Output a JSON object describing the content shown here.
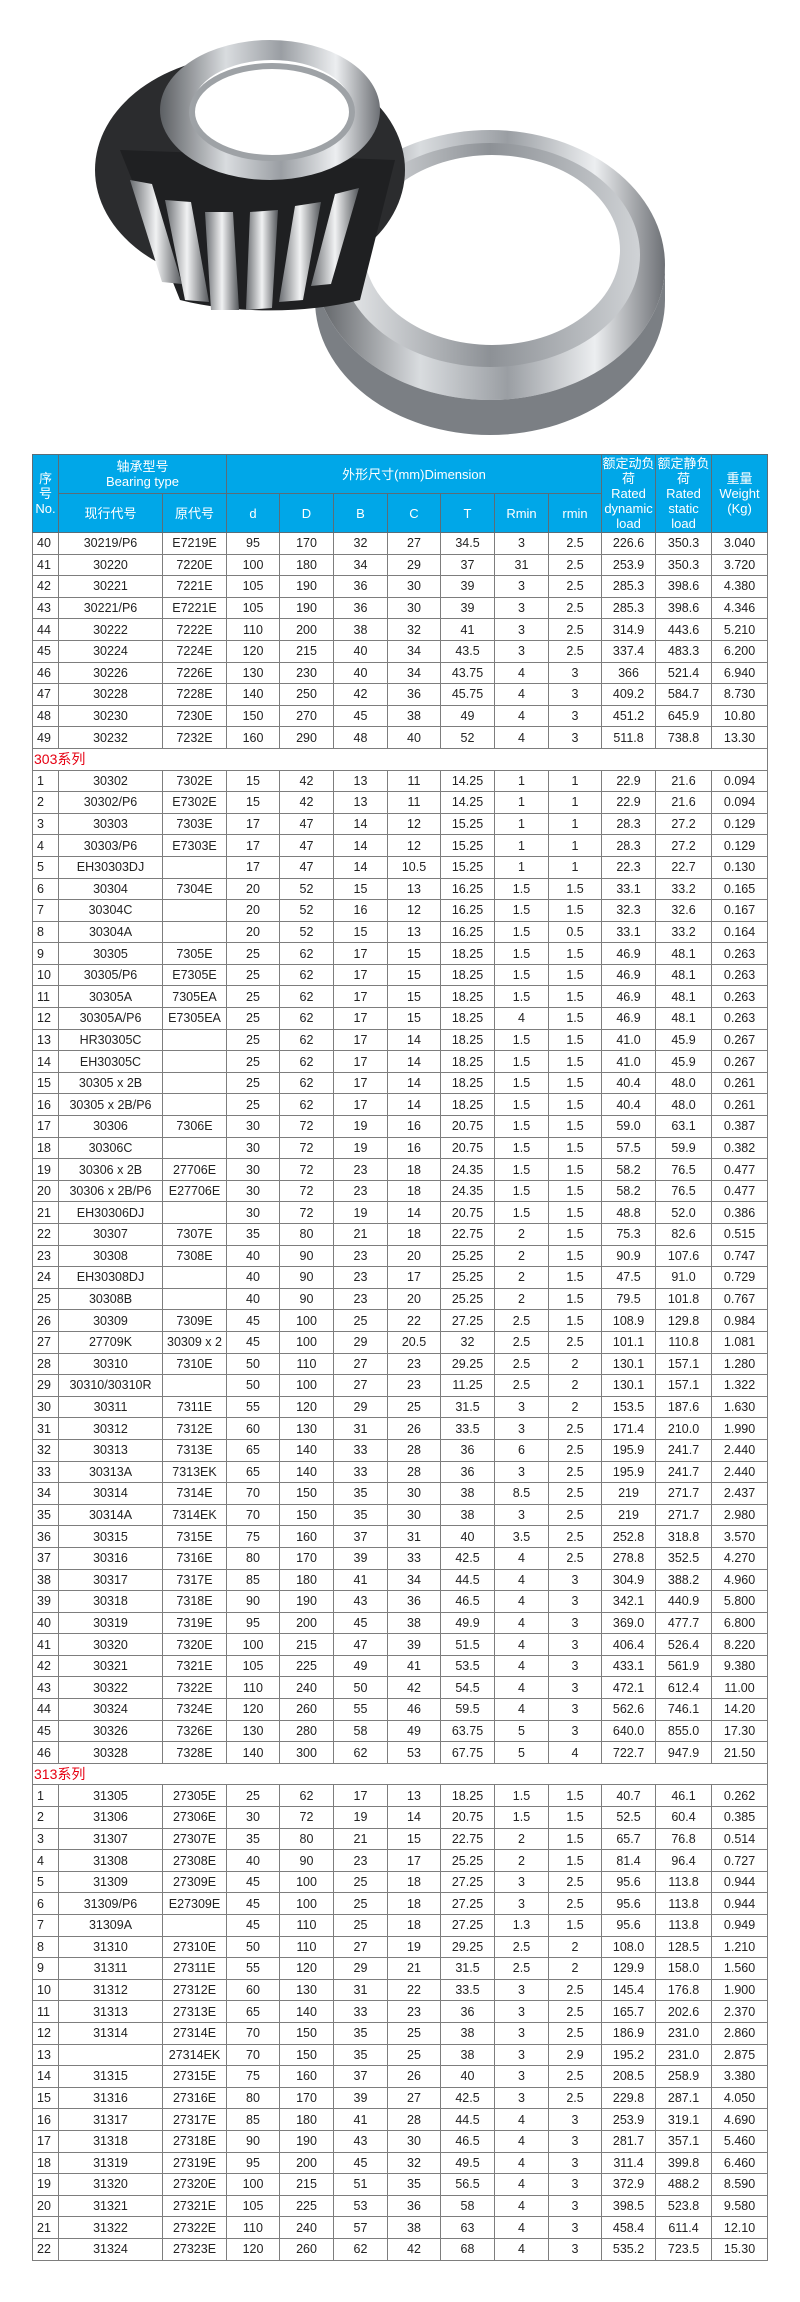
{
  "colors": {
    "header_bg": "#00a7e8",
    "series_label": "#e60012",
    "grid": "#7d7d7d"
  },
  "header": {
    "no_cn": "序号",
    "no_en": "No.",
    "bearing_type_cn": "轴承型号",
    "bearing_type_en": "Bearing type",
    "current_code": "现行代号",
    "original_code": "原代号",
    "dimension": "外形尺寸(mm)Dimension",
    "dims": [
      "d",
      "D",
      "B",
      "C",
      "T",
      "Rmin",
      "rmin"
    ],
    "dynamic_cn": "额定动负荷",
    "dynamic_en": "Rated dynamic load",
    "static_cn": "额定静负荷",
    "static_en": "Rated static load",
    "weight_cn": "重量",
    "weight_en": "Weight (Kg)"
  },
  "sections": [
    {
      "label": "",
      "rows": [
        [
          "40",
          "30219/P6",
          "E7219E",
          "95",
          "170",
          "32",
          "27",
          "34.5",
          "3",
          "2.5",
          "226.6",
          "350.3",
          "3.040"
        ],
        [
          "41",
          "30220",
          "7220E",
          "100",
          "180",
          "34",
          "29",
          "37",
          "31",
          "2.5",
          "253.9",
          "350.3",
          "3.720"
        ],
        [
          "42",
          "30221",
          "7221E",
          "105",
          "190",
          "36",
          "30",
          "39",
          "3",
          "2.5",
          "285.3",
          "398.6",
          "4.380"
        ],
        [
          "43",
          "30221/P6",
          "E7221E",
          "105",
          "190",
          "36",
          "30",
          "39",
          "3",
          "2.5",
          "285.3",
          "398.6",
          "4.346"
        ],
        [
          "44",
          "30222",
          "7222E",
          "110",
          "200",
          "38",
          "32",
          "41",
          "3",
          "2.5",
          "314.9",
          "443.6",
          "5.210"
        ],
        [
          "45",
          "30224",
          "7224E",
          "120",
          "215",
          "40",
          "34",
          "43.5",
          "3",
          "2.5",
          "337.4",
          "483.3",
          "6.200"
        ],
        [
          "46",
          "30226",
          "7226E",
          "130",
          "230",
          "40",
          "34",
          "43.75",
          "4",
          "3",
          "366",
          "521.4",
          "6.940"
        ],
        [
          "47",
          "30228",
          "7228E",
          "140",
          "250",
          "42",
          "36",
          "45.75",
          "4",
          "3",
          "409.2",
          "584.7",
          "8.730"
        ],
        [
          "48",
          "30230",
          "7230E",
          "150",
          "270",
          "45",
          "38",
          "49",
          "4",
          "3",
          "451.2",
          "645.9",
          "10.80"
        ],
        [
          "49",
          "30232",
          "7232E",
          "160",
          "290",
          "48",
          "40",
          "52",
          "4",
          "3",
          "511.8",
          "738.8",
          "13.30"
        ]
      ]
    },
    {
      "label": "303系列",
      "rows": [
        [
          "1",
          "30302",
          "7302E",
          "15",
          "42",
          "13",
          "11",
          "14.25",
          "1",
          "1",
          "22.9",
          "21.6",
          "0.094"
        ],
        [
          "2",
          "30302/P6",
          "E7302E",
          "15",
          "42",
          "13",
          "11",
          "14.25",
          "1",
          "1",
          "22.9",
          "21.6",
          "0.094"
        ],
        [
          "3",
          "30303",
          "7303E",
          "17",
          "47",
          "14",
          "12",
          "15.25",
          "1",
          "1",
          "28.3",
          "27.2",
          "0.129"
        ],
        [
          "4",
          "30303/P6",
          "E7303E",
          "17",
          "47",
          "14",
          "12",
          "15.25",
          "1",
          "1",
          "28.3",
          "27.2",
          "0.129"
        ],
        [
          "5",
          "EH30303DJ",
          "",
          "17",
          "47",
          "14",
          "10.5",
          "15.25",
          "1",
          "1",
          "22.3",
          "22.7",
          "0.130"
        ],
        [
          "6",
          "30304",
          "7304E",
          "20",
          "52",
          "15",
          "13",
          "16.25",
          "1.5",
          "1.5",
          "33.1",
          "33.2",
          "0.165"
        ],
        [
          "7",
          "30304C",
          "",
          "20",
          "52",
          "16",
          "12",
          "16.25",
          "1.5",
          "1.5",
          "32.3",
          "32.6",
          "0.167"
        ],
        [
          "8",
          "30304A",
          "",
          "20",
          "52",
          "15",
          "13",
          "16.25",
          "1.5",
          "0.5",
          "33.1",
          "33.2",
          "0.164"
        ],
        [
          "9",
          "30305",
          "7305E",
          "25",
          "62",
          "17",
          "15",
          "18.25",
          "1.5",
          "1.5",
          "46.9",
          "48.1",
          "0.263"
        ],
        [
          "10",
          "30305/P6",
          "E7305E",
          "25",
          "62",
          "17",
          "15",
          "18.25",
          "1.5",
          "1.5",
          "46.9",
          "48.1",
          "0.263"
        ],
        [
          "11",
          "30305A",
          "7305EA",
          "25",
          "62",
          "17",
          "15",
          "18.25",
          "1.5",
          "1.5",
          "46.9",
          "48.1",
          "0.263"
        ],
        [
          "12",
          "30305A/P6",
          "E7305EA",
          "25",
          "62",
          "17",
          "15",
          "18.25",
          "4",
          "1.5",
          "46.9",
          "48.1",
          "0.263"
        ],
        [
          "13",
          "HR30305C",
          "",
          "25",
          "62",
          "17",
          "14",
          "18.25",
          "1.5",
          "1.5",
          "41.0",
          "45.9",
          "0.267"
        ],
        [
          "14",
          "EH30305C",
          "",
          "25",
          "62",
          "17",
          "14",
          "18.25",
          "1.5",
          "1.5",
          "41.0",
          "45.9",
          "0.267"
        ],
        [
          "15",
          "30305 x 2B",
          "",
          "25",
          "62",
          "17",
          "14",
          "18.25",
          "1.5",
          "1.5",
          "40.4",
          "48.0",
          "0.261"
        ],
        [
          "16",
          "30305 x 2B/P6",
          "",
          "25",
          "62",
          "17",
          "14",
          "18.25",
          "1.5",
          "1.5",
          "40.4",
          "48.0",
          "0.261"
        ],
        [
          "17",
          "30306",
          "7306E",
          "30",
          "72",
          "19",
          "16",
          "20.75",
          "1.5",
          "1.5",
          "59.0",
          "63.1",
          "0.387"
        ],
        [
          "18",
          "30306C",
          "",
          "30",
          "72",
          "19",
          "16",
          "20.75",
          "1.5",
          "1.5",
          "57.5",
          "59.9",
          "0.382"
        ],
        [
          "19",
          "30306 x 2B",
          "27706E",
          "30",
          "72",
          "23",
          "18",
          "24.35",
          "1.5",
          "1.5",
          "58.2",
          "76.5",
          "0.477"
        ],
        [
          "20",
          "30306 x 2B/P6",
          "E27706E",
          "30",
          "72",
          "23",
          "18",
          "24.35",
          "1.5",
          "1.5",
          "58.2",
          "76.5",
          "0.477"
        ],
        [
          "21",
          "EH30306DJ",
          "",
          "30",
          "72",
          "19",
          "14",
          "20.75",
          "1.5",
          "1.5",
          "48.8",
          "52.0",
          "0.386"
        ],
        [
          "22",
          "30307",
          "7307E",
          "35",
          "80",
          "21",
          "18",
          "22.75",
          "2",
          "1.5",
          "75.3",
          "82.6",
          "0.515"
        ],
        [
          "23",
          "30308",
          "7308E",
          "40",
          "90",
          "23",
          "20",
          "25.25",
          "2",
          "1.5",
          "90.9",
          "107.6",
          "0.747"
        ],
        [
          "24",
          "EH30308DJ",
          "",
          "40",
          "90",
          "23",
          "17",
          "25.25",
          "2",
          "1.5",
          "47.5",
          "91.0",
          "0.729"
        ],
        [
          "25",
          "30308B",
          "",
          "40",
          "90",
          "23",
          "20",
          "25.25",
          "2",
          "1.5",
          "79.5",
          "101.8",
          "0.767"
        ],
        [
          "26",
          "30309",
          "7309E",
          "45",
          "100",
          "25",
          "22",
          "27.25",
          "2.5",
          "1.5",
          "108.9",
          "129.8",
          "0.984"
        ],
        [
          "27",
          "27709K",
          "30309 x 2",
          "45",
          "100",
          "29",
          "20.5",
          "32",
          "2.5",
          "2.5",
          "101.1",
          "110.8",
          "1.081"
        ],
        [
          "28",
          "30310",
          "7310E",
          "50",
          "110",
          "27",
          "23",
          "29.25",
          "2.5",
          "2",
          "130.1",
          "157.1",
          "1.280"
        ],
        [
          "29",
          "30310/30310R",
          "",
          "50",
          "100",
          "27",
          "23",
          "11.25",
          "2.5",
          "2",
          "130.1",
          "157.1",
          "1.322"
        ],
        [
          "30",
          "30311",
          "7311E",
          "55",
          "120",
          "29",
          "25",
          "31.5",
          "3",
          "2",
          "153.5",
          "187.6",
          "1.630"
        ],
        [
          "31",
          "30312",
          "7312E",
          "60",
          "130",
          "31",
          "26",
          "33.5",
          "3",
          "2.5",
          "171.4",
          "210.0",
          "1.990"
        ],
        [
          "32",
          "30313",
          "7313E",
          "65",
          "140",
          "33",
          "28",
          "36",
          "6",
          "2.5",
          "195.9",
          "241.7",
          "2.440"
        ],
        [
          "33",
          "30313A",
          "7313EK",
          "65",
          "140",
          "33",
          "28",
          "36",
          "3",
          "2.5",
          "195.9",
          "241.7",
          "2.440"
        ],
        [
          "34",
          "30314",
          "7314E",
          "70",
          "150",
          "35",
          "30",
          "38",
          "8.5",
          "2.5",
          "219",
          "271.7",
          "2.437"
        ],
        [
          "35",
          "30314A",
          "7314EK",
          "70",
          "150",
          "35",
          "30",
          "38",
          "3",
          "2.5",
          "219",
          "271.7",
          "2.980"
        ],
        [
          "36",
          "30315",
          "7315E",
          "75",
          "160",
          "37",
          "31",
          "40",
          "3.5",
          "2.5",
          "252.8",
          "318.8",
          "3.570"
        ],
        [
          "37",
          "30316",
          "7316E",
          "80",
          "170",
          "39",
          "33",
          "42.5",
          "4",
          "2.5",
          "278.8",
          "352.5",
          "4.270"
        ],
        [
          "38",
          "30317",
          "7317E",
          "85",
          "180",
          "41",
          "34",
          "44.5",
          "4",
          "3",
          "304.9",
          "388.2",
          "4.960"
        ],
        [
          "39",
          "30318",
          "7318E",
          "90",
          "190",
          "43",
          "36",
          "46.5",
          "4",
          "3",
          "342.1",
          "440.9",
          "5.800"
        ],
        [
          "40",
          "30319",
          "7319E",
          "95",
          "200",
          "45",
          "38",
          "49.9",
          "4",
          "3",
          "369.0",
          "477.7",
          "6.800"
        ],
        [
          "41",
          "30320",
          "7320E",
          "100",
          "215",
          "47",
          "39",
          "51.5",
          "4",
          "3",
          "406.4",
          "526.4",
          "8.220"
        ],
        [
          "42",
          "30321",
          "7321E",
          "105",
          "225",
          "49",
          "41",
          "53.5",
          "4",
          "3",
          "433.1",
          "561.9",
          "9.380"
        ],
        [
          "43",
          "30322",
          "7322E",
          "110",
          "240",
          "50",
          "42",
          "54.5",
          "4",
          "3",
          "472.1",
          "612.4",
          "11.00"
        ],
        [
          "44",
          "30324",
          "7324E",
          "120",
          "260",
          "55",
          "46",
          "59.5",
          "4",
          "3",
          "562.6",
          "746.1",
          "14.20"
        ],
        [
          "45",
          "30326",
          "7326E",
          "130",
          "280",
          "58",
          "49",
          "63.75",
          "5",
          "3",
          "640.0",
          "855.0",
          "17.30"
        ],
        [
          "46",
          "30328",
          "7328E",
          "140",
          "300",
          "62",
          "53",
          "67.75",
          "5",
          "4",
          "722.7",
          "947.9",
          "21.50"
        ]
      ]
    },
    {
      "label": "313系列",
      "rows": [
        [
          "1",
          "31305",
          "27305E",
          "25",
          "62",
          "17",
          "13",
          "18.25",
          "1.5",
          "1.5",
          "40.7",
          "46.1",
          "0.262"
        ],
        [
          "2",
          "31306",
          "27306E",
          "30",
          "72",
          "19",
          "14",
          "20.75",
          "1.5",
          "1.5",
          "52.5",
          "60.4",
          "0.385"
        ],
        [
          "3",
          "31307",
          "27307E",
          "35",
          "80",
          "21",
          "15",
          "22.75",
          "2",
          "1.5",
          "65.7",
          "76.8",
          "0.514"
        ],
        [
          "4",
          "31308",
          "27308E",
          "40",
          "90",
          "23",
          "17",
          "25.25",
          "2",
          "1.5",
          "81.4",
          "96.4",
          "0.727"
        ],
        [
          "5",
          "31309",
          "27309E",
          "45",
          "100",
          "25",
          "18",
          "27.25",
          "3",
          "2.5",
          "95.6",
          "113.8",
          "0.944"
        ],
        [
          "6",
          "31309/P6",
          "E27309E",
          "45",
          "100",
          "25",
          "18",
          "27.25",
          "3",
          "2.5",
          "95.6",
          "113.8",
          "0.944"
        ],
        [
          "7",
          "31309A",
          "",
          "45",
          "110",
          "25",
          "18",
          "27.25",
          "1.3",
          "1.5",
          "95.6",
          "113.8",
          "0.949"
        ],
        [
          "8",
          "31310",
          "27310E",
          "50",
          "110",
          "27",
          "19",
          "29.25",
          "2.5",
          "2",
          "108.0",
          "128.5",
          "1.210"
        ],
        [
          "9",
          "31311",
          "27311E",
          "55",
          "120",
          "29",
          "21",
          "31.5",
          "2.5",
          "2",
          "129.9",
          "158.0",
          "1.560"
        ],
        [
          "10",
          "31312",
          "27312E",
          "60",
          "130",
          "31",
          "22",
          "33.5",
          "3",
          "2.5",
          "145.4",
          "176.8",
          "1.900"
        ],
        [
          "11",
          "31313",
          "27313E",
          "65",
          "140",
          "33",
          "23",
          "36",
          "3",
          "2.5",
          "165.7",
          "202.6",
          "2.370"
        ],
        [
          "12",
          "31314",
          "27314E",
          "70",
          "150",
          "35",
          "25",
          "38",
          "3",
          "2.5",
          "186.9",
          "231.0",
          "2.860"
        ],
        [
          "13",
          "",
          "27314EK",
          "70",
          "150",
          "35",
          "25",
          "38",
          "3",
          "2.9",
          "195.2",
          "231.0",
          "2.875"
        ],
        [
          "14",
          "31315",
          "27315E",
          "75",
          "160",
          "37",
          "26",
          "40",
          "3",
          "2.5",
          "208.5",
          "258.9",
          "3.380"
        ],
        [
          "15",
          "31316",
          "27316E",
          "80",
          "170",
          "39",
          "27",
          "42.5",
          "3",
          "2.5",
          "229.8",
          "287.1",
          "4.050"
        ],
        [
          "16",
          "31317",
          "27317E",
          "85",
          "180",
          "41",
          "28",
          "44.5",
          "4",
          "3",
          "253.9",
          "319.1",
          "4.690"
        ],
        [
          "17",
          "31318",
          "27318E",
          "90",
          "190",
          "43",
          "30",
          "46.5",
          "4",
          "3",
          "281.7",
          "357.1",
          "5.460"
        ],
        [
          "18",
          "31319",
          "27319E",
          "95",
          "200",
          "45",
          "32",
          "49.5",
          "4",
          "3",
          "311.4",
          "399.8",
          "6.460"
        ],
        [
          "19",
          "31320",
          "27320E",
          "100",
          "215",
          "51",
          "35",
          "56.5",
          "4",
          "3",
          "372.9",
          "488.2",
          "8.590"
        ],
        [
          "20",
          "31321",
          "27321E",
          "105",
          "225",
          "53",
          "36",
          "58",
          "4",
          "3",
          "398.5",
          "523.8",
          "9.580"
        ],
        [
          "21",
          "31322",
          "27322E",
          "110",
          "240",
          "57",
          "38",
          "63",
          "4",
          "3",
          "458.4",
          "611.4",
          "12.10"
        ],
        [
          "22",
          "31324",
          "27323E",
          "120",
          "260",
          "62",
          "42",
          "68",
          "4",
          "3",
          "535.2",
          "723.5",
          "15.30"
        ]
      ]
    }
  ]
}
